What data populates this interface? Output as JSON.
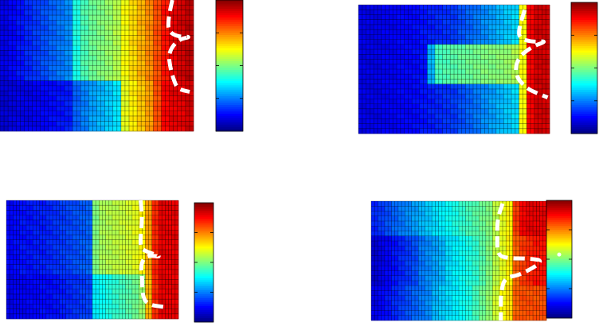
{
  "chart_data": [
    {
      "type": "heatmap",
      "colormap": "jet",
      "colorbar": true,
      "grid": true,
      "row_bands": [
        {
          "until": 0.62,
          "cols": [
            0.1,
            0.12,
            0.14,
            0.16,
            0.18,
            0.2,
            0.22,
            0.24,
            0.26,
            0.4,
            0.45,
            0.48,
            0.5,
            0.52,
            0.55,
            0.62,
            0.66,
            0.7,
            0.74,
            0.8,
            0.86,
            0.9,
            0.92,
            0.94
          ]
        },
        {
          "until": 1.0,
          "cols": [
            0.08,
            0.09,
            0.1,
            0.1,
            0.11,
            0.12,
            0.13,
            0.14,
            0.15,
            0.22,
            0.25,
            0.28,
            0.3,
            0.32,
            0.35,
            0.6,
            0.64,
            0.68,
            0.72,
            0.8,
            0.88,
            0.9,
            0.9,
            0.92
          ]
        }
      ],
      "boundary": [
        [
          0.89,
          0.0
        ],
        [
          0.87,
          0.14
        ],
        [
          0.87,
          0.24
        ],
        [
          0.92,
          0.28
        ],
        [
          0.99,
          0.28
        ],
        [
          0.92,
          0.3
        ],
        [
          0.87,
          0.4
        ],
        [
          0.88,
          0.52
        ],
        [
          0.9,
          0.62
        ],
        [
          0.92,
          0.68
        ],
        [
          0.98,
          0.7
        ]
      ]
    },
    {
      "type": "heatmap",
      "colormap": "jet",
      "colorbar": true,
      "grid": true,
      "row_bands": [
        {
          "until": 0.3,
          "cols": [
            0.1,
            0.1,
            0.1,
            0.11,
            0.11,
            0.12,
            0.12,
            0.13,
            0.14,
            0.15,
            0.16,
            0.17,
            0.18,
            0.2,
            0.22,
            0.24,
            0.26,
            0.28,
            0.3,
            0.32,
            0.34,
            0.62,
            0.88,
            0.92,
            0.92
          ]
        },
        {
          "until": 0.63,
          "cols": [
            0.1,
            0.1,
            0.1,
            0.11,
            0.11,
            0.12,
            0.12,
            0.13,
            0.14,
            0.3,
            0.44,
            0.45,
            0.46,
            0.47,
            0.48,
            0.49,
            0.5,
            0.5,
            0.51,
            0.52,
            0.55,
            0.62,
            0.88,
            0.92,
            0.92
          ]
        },
        {
          "until": 1.0,
          "cols": [
            0.1,
            0.1,
            0.1,
            0.11,
            0.11,
            0.12,
            0.12,
            0.13,
            0.14,
            0.15,
            0.16,
            0.17,
            0.18,
            0.2,
            0.22,
            0.24,
            0.26,
            0.28,
            0.3,
            0.32,
            0.34,
            0.62,
            0.88,
            0.92,
            0.92
          ]
        }
      ],
      "boundary": [
        [
          0.87,
          0.04
        ],
        [
          0.84,
          0.18
        ],
        [
          0.84,
          0.26
        ],
        [
          0.91,
          0.29
        ],
        [
          0.99,
          0.28
        ],
        [
          0.9,
          0.33
        ],
        [
          0.83,
          0.42
        ],
        [
          0.82,
          0.55
        ],
        [
          0.88,
          0.65
        ],
        [
          0.94,
          0.69
        ],
        [
          0.99,
          0.72
        ]
      ]
    },
    {
      "type": "heatmap",
      "colormap": "jet",
      "colorbar": true,
      "grid": true,
      "row_bands": [
        {
          "until": 0.62,
          "cols": [
            0.12,
            0.13,
            0.14,
            0.14,
            0.15,
            0.15,
            0.16,
            0.17,
            0.18,
            0.19,
            0.2,
            0.21,
            0.22,
            0.5,
            0.54,
            0.55,
            0.56,
            0.57,
            0.58,
            0.6,
            0.63,
            0.72,
            0.84,
            0.9,
            0.9,
            0.9
          ]
        },
        {
          "until": 1.0,
          "cols": [
            0.1,
            0.11,
            0.11,
            0.12,
            0.12,
            0.13,
            0.13,
            0.14,
            0.15,
            0.16,
            0.17,
            0.18,
            0.19,
            0.36,
            0.38,
            0.4,
            0.42,
            0.44,
            0.46,
            0.48,
            0.52,
            0.7,
            0.84,
            0.9,
            0.9,
            0.9
          ]
        }
      ],
      "boundary": [
        [
          0.78,
          0.0
        ],
        [
          0.79,
          0.15
        ],
        [
          0.78,
          0.3
        ],
        [
          0.78,
          0.4
        ],
        [
          0.81,
          0.43
        ],
        [
          0.91,
          0.48
        ],
        [
          0.81,
          0.46
        ],
        [
          0.78,
          0.55
        ],
        [
          0.79,
          0.65
        ],
        [
          0.79,
          0.8
        ],
        [
          0.82,
          0.88
        ],
        [
          0.92,
          0.9
        ]
      ]
    },
    {
      "type": "heatmap",
      "colormap": "jet",
      "colorbar": true,
      "grid": true,
      "row_bands": [
        {
          "until": 0.3,
          "cols": [
            0.16,
            0.18,
            0.2,
            0.22,
            0.24,
            0.26,
            0.28,
            0.3,
            0.32,
            0.34,
            0.36,
            0.38,
            0.4,
            0.42,
            0.44,
            0.46,
            0.48,
            0.5,
            0.56,
            0.6,
            0.64,
            0.82,
            0.88,
            0.9,
            0.9,
            0.9
          ]
        },
        {
          "until": 0.7,
          "cols": [
            0.08,
            0.1,
            0.12,
            0.14,
            0.16,
            0.18,
            0.2,
            0.24,
            0.26,
            0.28,
            0.3,
            0.34,
            0.36,
            0.38,
            0.4,
            0.42,
            0.46,
            0.5,
            0.56,
            0.6,
            0.64,
            0.78,
            0.82,
            0.84,
            0.86,
            0.86
          ]
        },
        {
          "until": 1.0,
          "cols": [
            0.1,
            0.12,
            0.14,
            0.16,
            0.18,
            0.2,
            0.22,
            0.24,
            0.26,
            0.3,
            0.32,
            0.34,
            0.36,
            0.38,
            0.4,
            0.44,
            0.48,
            0.52,
            0.58,
            0.62,
            0.66,
            0.78,
            0.8,
            0.8,
            0.8,
            0.8
          ]
        }
      ],
      "boundary": [
        [
          0.75,
          0.02
        ],
        [
          0.72,
          0.15
        ],
        [
          0.72,
          0.3
        ],
        [
          0.72,
          0.45
        ],
        [
          0.78,
          0.48
        ],
        [
          0.9,
          0.48
        ],
        [
          0.99,
          0.5
        ],
        [
          0.85,
          0.62
        ],
        [
          0.76,
          0.64
        ],
        [
          0.74,
          0.78
        ],
        [
          0.74,
          0.88
        ],
        [
          0.74,
          1.0
        ]
      ],
      "marker": [
        0.5,
        0.46
      ]
    }
  ]
}
